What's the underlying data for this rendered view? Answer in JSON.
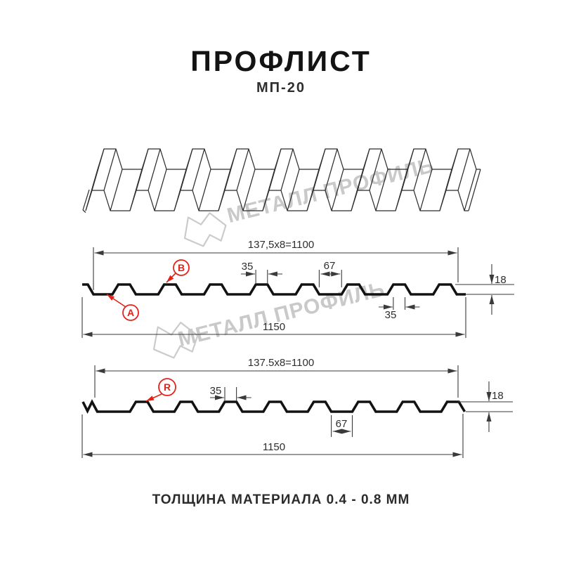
{
  "header": {
    "title": "ПРОФЛИСТ",
    "subtitle": "МП-20"
  },
  "watermark": {
    "brand": "МЕТАЛЛ ПРОФИЛЬ",
    "color": "#c9c9c9"
  },
  "footer": {
    "note": "ТОЛЩИНА МАТЕРИАЛА 0.4 - 0.8 ММ"
  },
  "diagram_a": {
    "span_dim": "137,5x8=1100",
    "rib_top_width": "35",
    "valley_width": "67",
    "height": "18",
    "edge_rib_width": "35",
    "overall_width": "1150",
    "label_a": "A",
    "label_b": "B"
  },
  "diagram_r": {
    "span_dim": "137.5x8=1100",
    "rib_top_width": "35",
    "valley_width": "67",
    "height": "18",
    "overall_width": "1150",
    "label_r": "R"
  },
  "colors": {
    "accent_red": "#e32219",
    "watermark_gray": "#c9c9c9",
    "line_black": "#121212"
  }
}
